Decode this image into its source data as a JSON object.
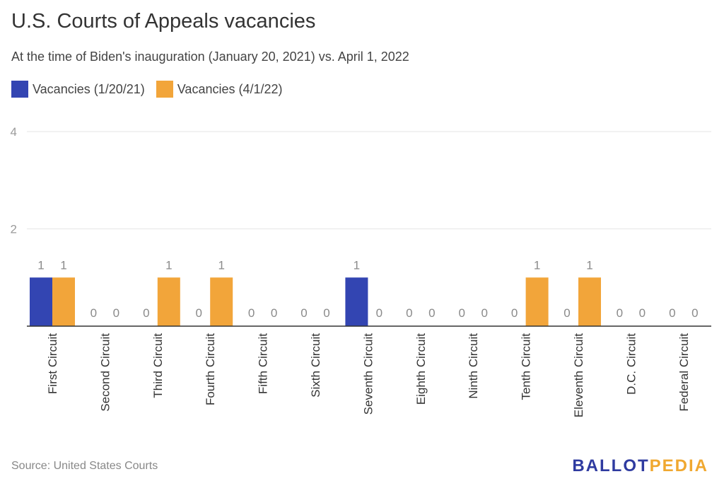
{
  "title": "U.S. Courts of Appeals vacancies",
  "subtitle": "At the time of Biden's inauguration (January 20, 2021) vs. April 1, 2022",
  "source": "Source: United States Courts",
  "logo": {
    "part1": "BALLOT",
    "part2": "PEDIA"
  },
  "colors": {
    "series1": "#3345b2",
    "series2": "#f2a53a",
    "grid": "#e6e6e6",
    "axis": "#333333"
  },
  "chart_data": {
    "type": "bar",
    "title": "U.S. Courts of Appeals vacancies",
    "subtitle": "At the time of Biden's inauguration (January 20, 2021) vs. April 1, 2022",
    "xlabel": "",
    "ylabel": "",
    "ylim": [
      0,
      4
    ],
    "yticks": [
      "2",
      "4"
    ],
    "grid": true,
    "legend_position": "top-left",
    "categories": [
      "First Circuit",
      "Second Circuit",
      "Third Circuit",
      "Fourth Circuit",
      "Fifth Circuit",
      "Sixth Circuit",
      "Seventh Circuit",
      "Eighth Circuit",
      "Ninth Circuit",
      "Tenth Circuit",
      "Eleventh Circuit",
      "D.C. Circuit",
      "Federal Circuit"
    ],
    "series": [
      {
        "name": "Vacancies (1/20/21)",
        "values": [
          1,
          0,
          0,
          0,
          0,
          0,
          1,
          0,
          0,
          0,
          0,
          0,
          0
        ]
      },
      {
        "name": "Vacancies (4/1/22)",
        "values": [
          1,
          0,
          1,
          1,
          0,
          0,
          0,
          0,
          0,
          1,
          1,
          0,
          0
        ]
      }
    ]
  }
}
